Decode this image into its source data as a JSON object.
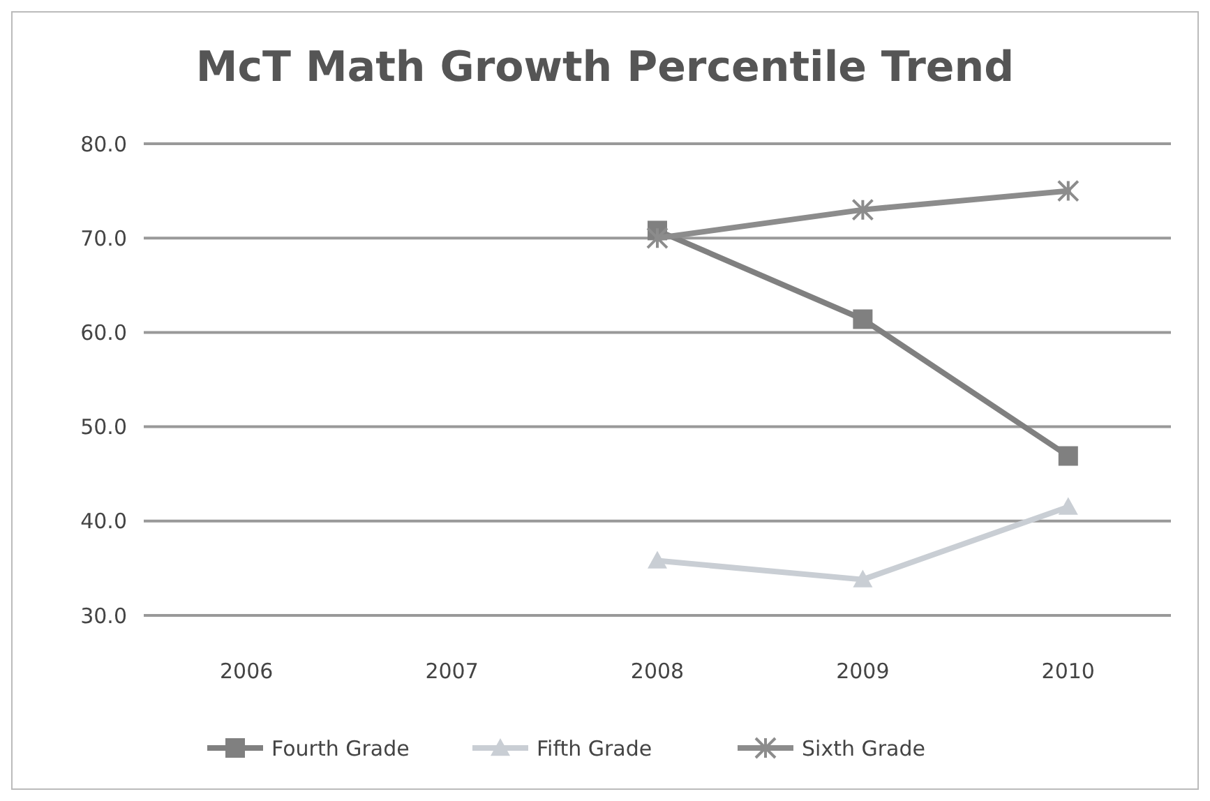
{
  "chart_data": {
    "type": "line",
    "title": "McT Math Growth Percentile Trend",
    "categories": [
      "2006",
      "2007",
      "2008",
      "2009",
      "2010"
    ],
    "series": [
      {
        "name": "Fourth Grade",
        "color": "#808080",
        "marker": "square",
        "values": [
          null,
          null,
          70.8,
          61.4,
          46.9
        ]
      },
      {
        "name": "Fifth Grade",
        "color": "#c9ced4",
        "marker": "triangle",
        "values": [
          null,
          null,
          35.8,
          33.8,
          41.5
        ]
      },
      {
        "name": "Sixth Grade",
        "color": "#8c8c8c",
        "marker": "cross",
        "values": [
          null,
          null,
          70.0,
          73.0,
          75.0
        ]
      }
    ],
    "ylim": [
      30,
      80
    ],
    "yticks": [
      {
        "value": 30,
        "label": "30.0"
      },
      {
        "value": 40,
        "label": "40.0"
      },
      {
        "value": 50,
        "label": "50.0"
      },
      {
        "value": 60,
        "label": "60.0"
      },
      {
        "value": 70,
        "label": "70.0"
      },
      {
        "value": 80,
        "label": "80.0"
      }
    ],
    "grid": "y",
    "legend": "bottom"
  }
}
